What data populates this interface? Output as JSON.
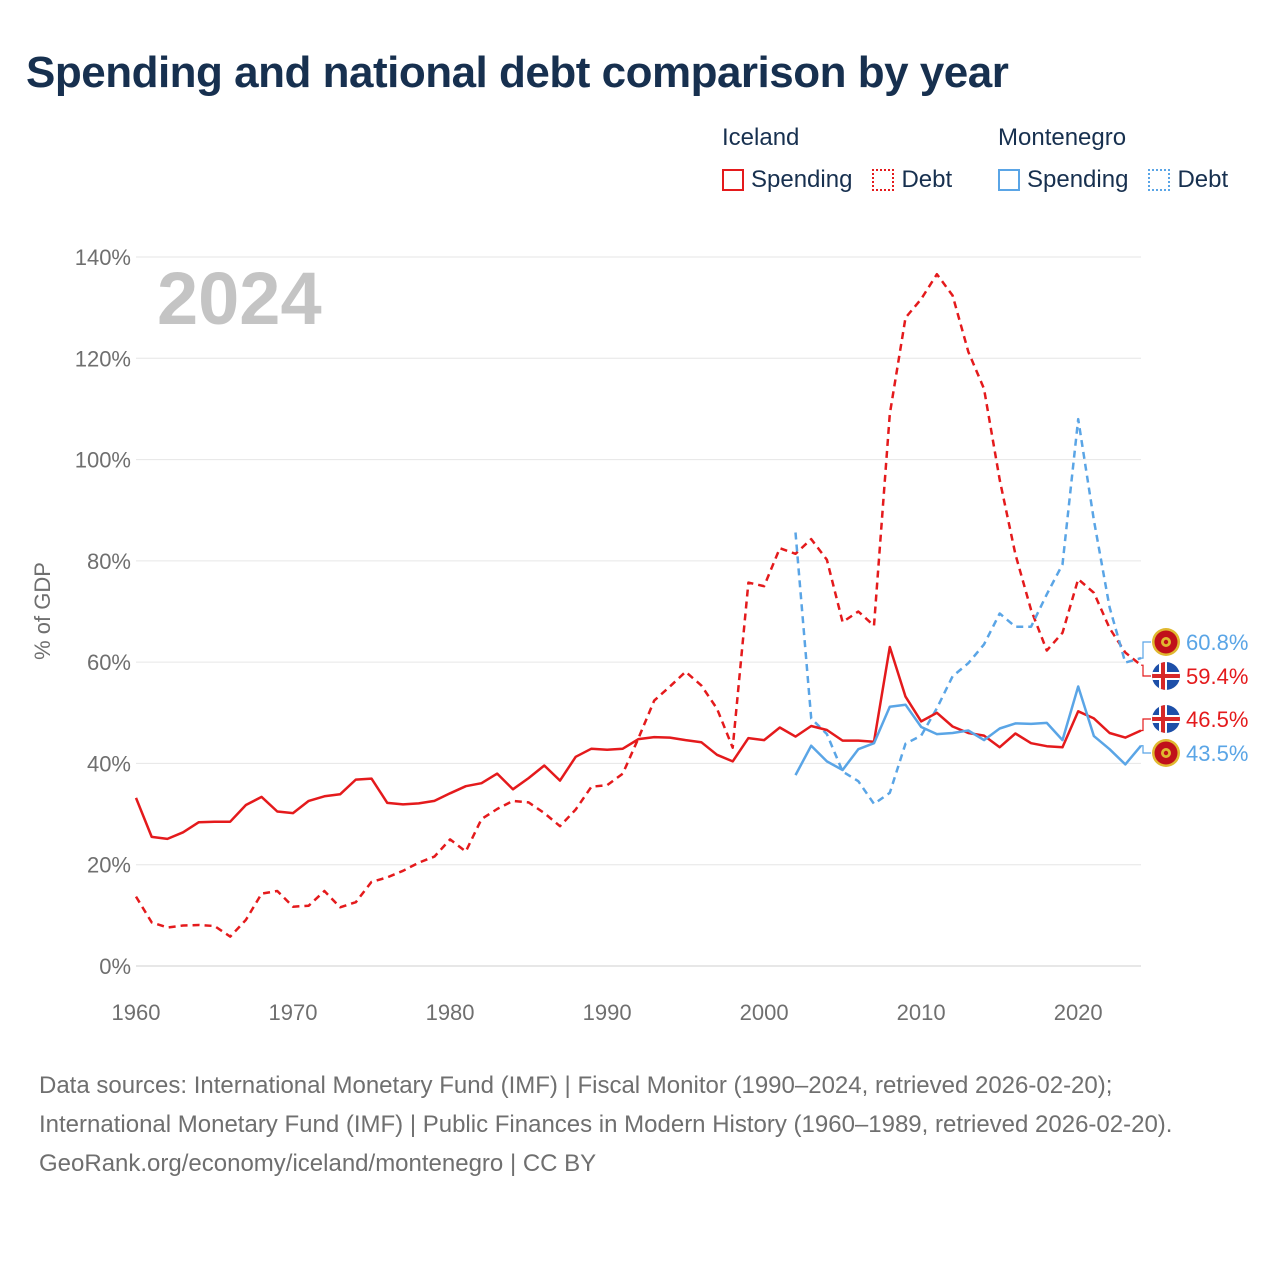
{
  "title": "Spending and national debt comparison by year",
  "legend": {
    "groups": [
      {
        "name": "Iceland",
        "color": "#e41a1c",
        "spending_label": "Spending",
        "debt_label": "Debt"
      },
      {
        "name": "Montenegro",
        "color": "#5aa5e6",
        "spending_label": "Spending",
        "debt_label": "Debt"
      }
    ]
  },
  "chart_data": {
    "type": "line",
    "title": "Spending and national debt comparison by year",
    "xlabel": "",
    "ylabel": "% of GDP",
    "xlim": [
      1960,
      2024
    ],
    "ylim": [
      0,
      140
    ],
    "x_ticks": [
      1960,
      1970,
      1980,
      1990,
      2000,
      2010,
      2020
    ],
    "y_ticks": [
      0,
      20,
      40,
      60,
      80,
      100,
      120,
      140
    ],
    "y_tick_labels": [
      "0%",
      "20%",
      "40%",
      "60%",
      "80%",
      "100%",
      "120%",
      "140%"
    ],
    "year_watermark": "2024",
    "grid": true,
    "series": [
      {
        "name": "Iceland Spending",
        "country": "Iceland",
        "metric": "Spending",
        "style": "solid",
        "color": "#e41a1c",
        "x_start": 1960,
        "values": [
          33.2,
          25.5,
          25.1,
          26.4,
          28.4,
          28.5,
          28.5,
          31.8,
          33.4,
          30.5,
          30.2,
          32.6,
          33.5,
          33.9,
          36.8,
          37.0,
          32.2,
          31.9,
          32.1,
          32.6,
          34.1,
          35.5,
          36.1,
          38.0,
          34.9,
          37.1,
          39.6,
          36.6,
          41.3,
          42.9,
          42.7,
          42.9,
          44.8,
          45.2,
          45.1,
          44.6,
          44.2,
          41.7,
          40.4,
          45.0,
          44.6,
          47.1,
          45.3,
          47.4,
          46.6,
          44.5,
          44.5,
          44.3,
          63.0,
          53.2,
          48.3,
          50.0,
          47.3,
          46.0,
          45.5,
          43.2,
          45.9,
          44.0,
          43.4,
          43.2,
          50.3,
          48.9,
          46.0,
          45.1,
          46.5
        ],
        "end_label": "46.5%"
      },
      {
        "name": "Iceland Debt",
        "country": "Iceland",
        "metric": "Debt",
        "style": "dashed",
        "color": "#e41a1c",
        "x_start": 1960,
        "values": [
          13.7,
          8.6,
          7.6,
          8.0,
          8.1,
          7.9,
          5.8,
          9.1,
          14.3,
          14.8,
          11.7,
          11.9,
          14.8,
          11.6,
          12.6,
          16.6,
          17.5,
          18.8,
          20.4,
          21.6,
          25.0,
          22.6,
          29.0,
          31.0,
          32.6,
          32.3,
          30.2,
          27.6,
          30.9,
          35.4,
          35.7,
          38.0,
          45.0,
          52.4,
          55.2,
          58.1,
          55.4,
          50.8,
          43.1,
          75.7,
          75.0,
          82.5,
          81.4,
          84.3,
          80.2,
          67.9,
          70.0,
          67.2,
          109.0,
          128.0,
          131.7,
          136.6,
          132.4,
          121.3,
          114.0,
          96.0,
          81.3,
          70.3,
          62.3,
          65.8,
          76.4,
          73.7,
          66.7,
          61.9,
          59.4
        ],
        "end_label": "59.4%"
      },
      {
        "name": "Montenegro Spending",
        "country": "Montenegro",
        "metric": "Spending",
        "style": "solid",
        "color": "#5aa5e6",
        "x_start": 2002,
        "values": [
          37.7,
          43.5,
          40.4,
          38.7,
          42.8,
          44.0,
          51.2,
          51.6,
          47.2,
          45.8,
          46.0,
          46.5,
          44.6,
          46.9,
          47.9,
          47.8,
          48.0,
          44.6,
          55.2,
          45.4,
          42.8,
          39.8,
          43.5
        ],
        "end_label": "43.5%"
      },
      {
        "name": "Montenegro Debt",
        "country": "Montenegro",
        "metric": "Debt",
        "style": "dashed",
        "color": "#5aa5e6",
        "x_start": 2002,
        "values": [
          85.6,
          48.9,
          45.8,
          38.4,
          36.5,
          32.0,
          34.2,
          43.9,
          45.5,
          50.9,
          57.2,
          59.8,
          63.5,
          69.6,
          67.0,
          67.0,
          73.4,
          79.3,
          108.0,
          88.0,
          70.8,
          59.9,
          60.8
        ],
        "end_label": "60.8%"
      }
    ]
  },
  "flags": [
    "iceland-flag-icon",
    "montenegro-flag-icon"
  ],
  "footer": {
    "sources": "Data sources: International Monetary Fund (IMF) | Fiscal Monitor (1990–2024, retrieved 2026-02-20); International Monetary Fund (IMF) | Public Finances in Modern History (1960–1989, retrieved 2026-02-20).",
    "credit": "GeoRank.org/economy/iceland/montenegro | CC BY"
  }
}
